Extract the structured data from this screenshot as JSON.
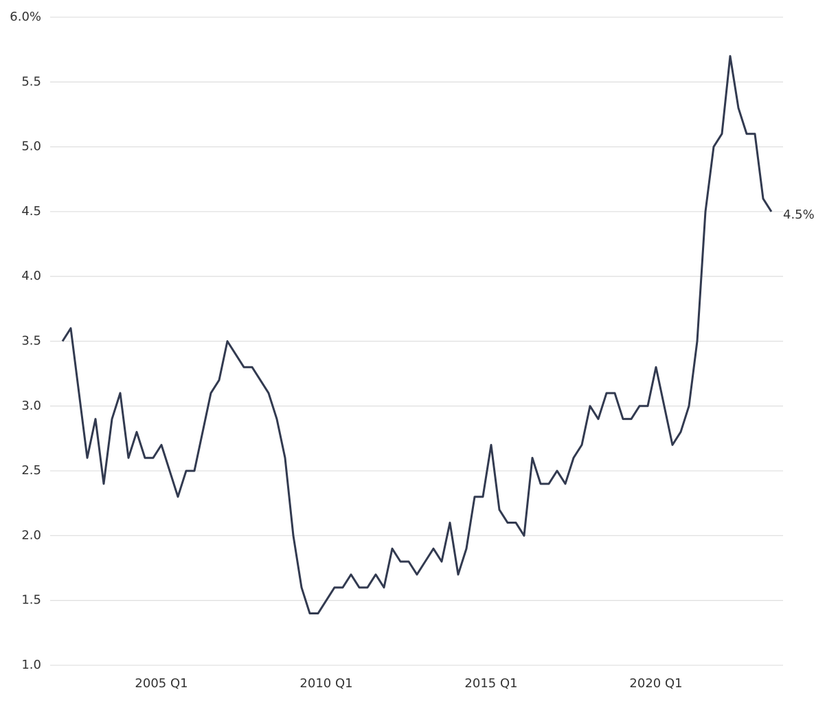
{
  "chart_data": {
    "type": "line",
    "categories": [
      null,
      null,
      null,
      null,
      null,
      null,
      null,
      null,
      null,
      null,
      null,
      null,
      "2005 Q1",
      null,
      null,
      null,
      null,
      null,
      null,
      null,
      null,
      null,
      null,
      null,
      null,
      null,
      null,
      null,
      null,
      null,
      null,
      null,
      "2010 Q1",
      null,
      null,
      null,
      null,
      null,
      null,
      null,
      null,
      null,
      null,
      null,
      null,
      null,
      null,
      null,
      null,
      null,
      null,
      null,
      "2015 Q1",
      null,
      null,
      null,
      null,
      null,
      null,
      null,
      null,
      null,
      null,
      null,
      null,
      null,
      null,
      null,
      null,
      null,
      null,
      null,
      "2020 Q1",
      null,
      null,
      null,
      null,
      null,
      null,
      null,
      null,
      null,
      null,
      null,
      null,
      null,
      null
    ],
    "values": [
      3.5,
      3.6,
      3.1,
      2.6,
      2.9,
      2.4,
      2.9,
      3.1,
      2.6,
      2.8,
      2.6,
      2.6,
      2.7,
      2.5,
      2.3,
      2.5,
      2.5,
      2.8,
      3.1,
      3.2,
      3.5,
      3.4,
      3.3,
      3.3,
      3.2,
      3.1,
      2.9,
      2.6,
      2.0,
      1.6,
      1.4,
      1.4,
      1.5,
      1.6,
      1.6,
      1.7,
      1.6,
      1.6,
      1.7,
      1.6,
      1.9,
      1.8,
      1.8,
      1.7,
      1.8,
      1.9,
      1.8,
      2.1,
      1.7,
      1.9,
      2.3,
      2.3,
      2.7,
      2.2,
      2.1,
      2.1,
      2.0,
      2.6,
      2.4,
      2.4,
      2.5,
      2.4,
      2.6,
      2.7,
      3.0,
      2.9,
      3.1,
      3.1,
      2.9,
      2.9,
      3.0,
      3.0,
      3.3,
      3.0,
      2.7,
      2.8,
      3.0,
      3.5,
      4.5,
      5.0,
      5.1,
      5.7,
      5.3,
      5.1,
      5.1,
      4.6,
      4.5
    ],
    "value_labels": [
      null,
      null,
      null,
      null,
      null,
      null,
      null,
      null,
      null,
      null,
      null,
      null,
      null,
      null,
      null,
      null,
      null,
      null,
      null,
      null,
      null,
      null,
      null,
      null,
      null,
      null,
      null,
      null,
      null,
      null,
      null,
      null,
      null,
      null,
      null,
      null,
      null,
      null,
      null,
      null,
      null,
      null,
      null,
      null,
      null,
      null,
      null,
      null,
      null,
      null,
      null,
      null,
      null,
      null,
      null,
      null,
      null,
      null,
      null,
      null,
      null,
      null,
      null,
      null,
      null,
      null,
      null,
      null,
      null,
      null,
      null,
      null,
      null,
      null,
      null,
      null,
      null,
      null,
      null,
      null,
      null,
      null,
      null,
      null,
      null,
      null,
      "4.5%"
    ],
    "color": "#323a50",
    "ylim": [
      1,
      6
    ],
    "yticks": [
      {
        "value": 1,
        "label": "1.0"
      },
      1.5,
      {
        "value": 2,
        "label": "2.0"
      },
      2.5,
      {
        "value": 3,
        "label": "3.0"
      },
      3.5,
      {
        "value": 4,
        "label": "4.0"
      },
      4.5,
      {
        "value": 5,
        "label": "5.0"
      },
      5.5,
      {
        "value": 6,
        "label": "6.0%"
      }
    ],
    "grid": true
  }
}
